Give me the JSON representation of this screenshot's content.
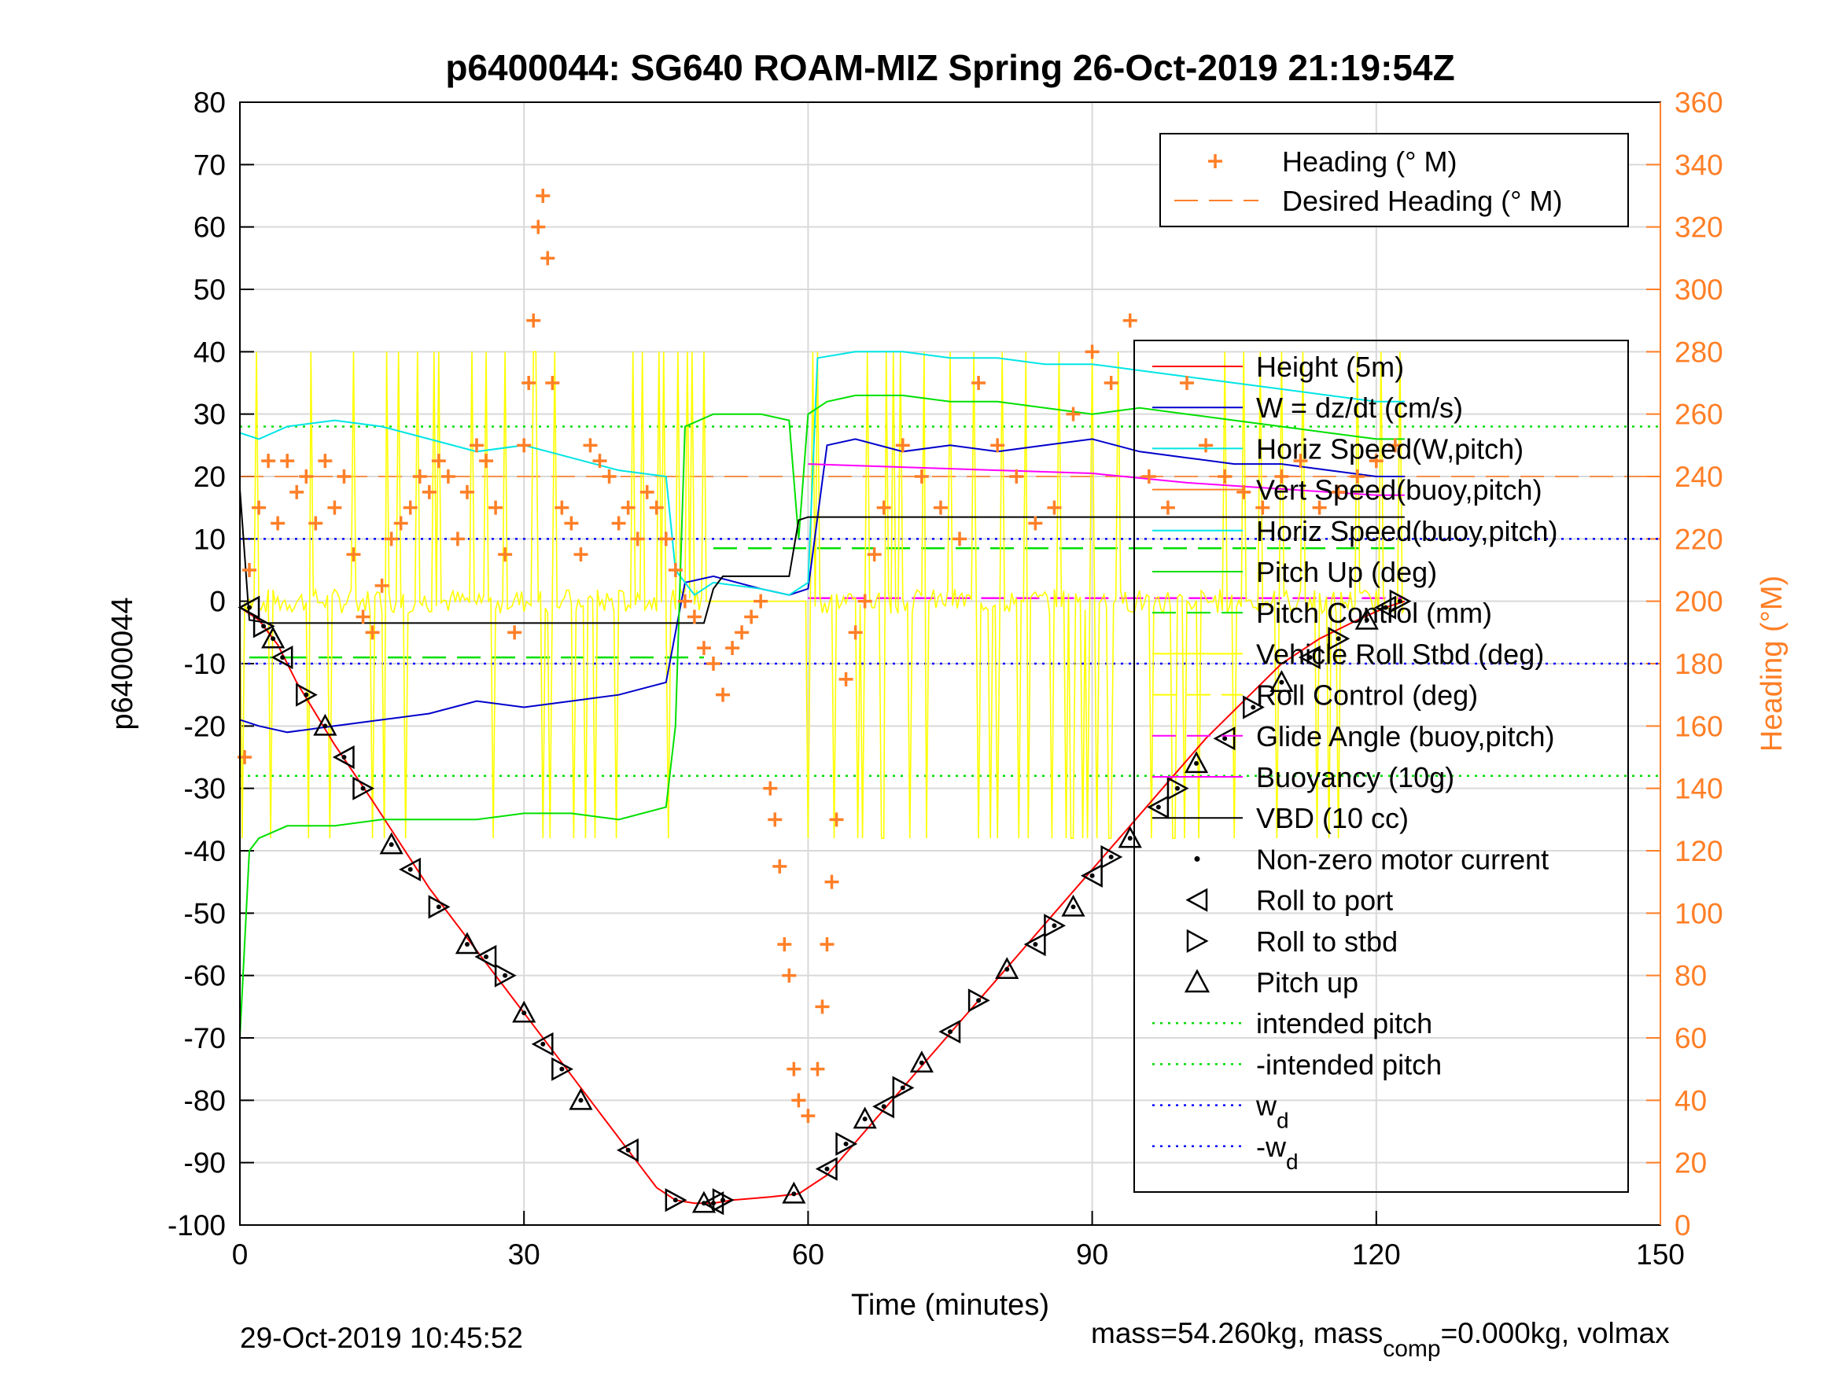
{
  "chart_data": {
    "type": "line",
    "title": "p6400044: SG640 ROAM-MIZ Spring 26-Oct-2019 21:19:54Z",
    "xlabel": "Time (minutes)",
    "ylabel": "p6400044",
    "y2label": "Heading (°M)",
    "xlim": [
      0,
      150
    ],
    "ylim": [
      -100,
      80
    ],
    "y2lim": [
      0,
      360
    ],
    "xticks": [
      0,
      30,
      60,
      90,
      120,
      150
    ],
    "yticks": [
      80,
      70,
      60,
      50,
      40,
      30,
      20,
      10,
      0,
      -10,
      -20,
      -30,
      -40,
      -50,
      -60,
      -70,
      -80,
      -90,
      -100
    ],
    "y2ticks": [
      360,
      340,
      320,
      300,
      280,
      260,
      240,
      220,
      200,
      180,
      160,
      140,
      120,
      100,
      80,
      60,
      40,
      20,
      0
    ],
    "grid": true,
    "colors": {
      "heading": "#ff7f27",
      "height": "#ff0000",
      "w": "#0000cc",
      "horiz_speed_w": "#00e5e5",
      "pitch": "#00e000",
      "roll": "#ffff00",
      "glide": "#ff00ff",
      "vbd": "#000000",
      "intended": "#00dd00",
      "wd": "#0000ff"
    },
    "legend_top": [
      {
        "label": "Heading (° M)",
        "style": "plus"
      },
      {
        "label": "Desired Heading (° M)",
        "style": "dash"
      }
    ],
    "legend_main": [
      {
        "label": "Height (5m)",
        "style": "solid",
        "color": "#ff0000"
      },
      {
        "label": "W = dz/dt (cm/s)",
        "style": "solid",
        "color": "#0000cc"
      },
      {
        "label": "Horiz Speed(W,pitch)",
        "style": "solid",
        "color": "#00e5e5"
      },
      {
        "label": "Vert Speed(buoy,pitch)",
        "style": "solid",
        "color": "#ff7f27"
      },
      {
        "label": "Horiz Speed(buoy,pitch)",
        "style": "solid",
        "color": "#00e5e5"
      },
      {
        "label": "Pitch Up (deg)",
        "style": "solid",
        "color": "#00e000"
      },
      {
        "label": "Pitch Control (mm)",
        "style": "dash",
        "color": "#00e000"
      },
      {
        "label": "Vehicle Roll Stbd (deg)",
        "style": "solid",
        "color": "#ffff00"
      },
      {
        "label": "Roll Control (deg)",
        "style": "dash",
        "color": "#ffff00"
      },
      {
        "label": "Glide Angle (buoy,pitch)",
        "style": "dash",
        "color": "#ff00ff"
      },
      {
        "label": "Buoyancy (10g)",
        "style": "solid",
        "color": "#ff00ff"
      },
      {
        "label": "VBD (10 cc)",
        "style": "solid",
        "color": "#000000"
      },
      {
        "label": "Non-zero motor current",
        "style": "dot",
        "color": "#000000"
      },
      {
        "label": "Roll to port",
        "style": "tri-left",
        "color": "#000000"
      },
      {
        "label": "Roll to stbd",
        "style": "tri-right",
        "color": "#000000"
      },
      {
        "label": "Pitch up",
        "style": "tri-up",
        "color": "#000000"
      },
      {
        "label": "intended pitch",
        "style": "dotted",
        "color": "#00dd00"
      },
      {
        "label": "-intended pitch",
        "style": "dotted",
        "color": "#00dd00"
      },
      {
        "label": "w",
        "sub": "d",
        "style": "dotted",
        "color": "#0000ff"
      },
      {
        "label": "-w",
        "sub": "d",
        "style": "dotted",
        "color": "#0000ff"
      }
    ],
    "desired_heading": 240,
    "intended_pitch": 28,
    "w_d": 10,
    "series": [
      {
        "name": "Height (5m)",
        "x": [
          0,
          2,
          4,
          6,
          10,
          14,
          20,
          26,
          30,
          34,
          38,
          42,
          44,
          46,
          48,
          50,
          52,
          56,
          59,
          62,
          66,
          70,
          74,
          78,
          82,
          86,
          90,
          94,
          98,
          102,
          106,
          110,
          114,
          118,
          121,
          123
        ],
        "y": [
          -1,
          -3,
          -7,
          -13,
          -23,
          -32,
          -46,
          -58,
          -66,
          -74,
          -82,
          -90,
          -94,
          -96,
          -96.5,
          -96.5,
          -96,
          -95.5,
          -95,
          -92,
          -85,
          -78,
          -71,
          -64,
          -57,
          -50,
          -43,
          -36,
          -29,
          -22,
          -16,
          -10,
          -6,
          -3,
          -1,
          0
        ]
      },
      {
        "name": "W = dz/dt (cm/s)",
        "x": [
          0,
          2,
          5,
          10,
          15,
          20,
          25,
          30,
          35,
          40,
          45,
          46,
          47,
          50,
          55,
          58,
          60,
          62,
          65,
          70,
          75,
          80,
          85,
          90,
          95,
          100,
          105,
          110,
          115,
          120,
          123
        ],
        "y": [
          -19,
          -20,
          -21,
          -20,
          -19,
          -18,
          -16,
          -17,
          -16,
          -15,
          -13,
          -5,
          3,
          4,
          2,
          1,
          2,
          25,
          26,
          24,
          25,
          24,
          25,
          26,
          24,
          23,
          22,
          22,
          21,
          20,
          20
        ]
      },
      {
        "name": "Horiz Speed(W,pitch)",
        "x": [
          0,
          2,
          5,
          10,
          15,
          20,
          25,
          30,
          35,
          40,
          45,
          46,
          48,
          50,
          55,
          58,
          60,
          61,
          65,
          70,
          75,
          80,
          85,
          90,
          95,
          100,
          105,
          110,
          115,
          120,
          123
        ],
        "y": [
          27,
          26,
          28,
          29,
          28,
          26,
          24,
          25,
          23,
          21,
          20,
          5,
          1,
          3,
          2,
          1,
          3,
          39,
          40,
          40,
          39,
          39,
          38,
          38,
          37,
          36,
          35,
          34,
          33,
          32,
          32
        ]
      },
      {
        "name": "Pitch Up (deg)",
        "x": [
          0,
          1,
          2,
          5,
          10,
          15,
          20,
          25,
          30,
          35,
          40,
          45,
          46,
          47,
          50,
          55,
          58,
          59,
          60,
          62,
          65,
          70,
          75,
          80,
          85,
          90,
          95,
          100,
          105,
          110,
          115,
          120,
          123
        ],
        "y": [
          -70,
          -40,
          -38,
          -36,
          -36,
          -35,
          -35,
          -35,
          -34,
          -34,
          -35,
          -33,
          -20,
          28,
          30,
          30,
          29,
          10,
          30,
          32,
          33,
          33,
          32,
          32,
          31,
          30,
          31,
          30,
          29,
          28,
          27,
          26,
          26
        ]
      },
      {
        "name": "Buoyancy (10g)",
        "x": [
          60,
          70,
          80,
          90,
          100,
          110,
          120,
          123
        ],
        "y": [
          22,
          21.5,
          21,
          20.5,
          19,
          18,
          17,
          17
        ]
      },
      {
        "name": "VBD (10 cc)",
        "x": [
          0,
          1,
          3,
          10,
          20,
          30,
          40,
          49,
          50,
          51,
          58,
          59,
          60,
          70,
          80,
          90,
          100,
          110,
          120,
          123
        ],
        "y": [
          18,
          -3,
          -3.5,
          -3.5,
          -3.5,
          -3.5,
          -3.5,
          -3.5,
          2,
          4,
          4,
          13,
          13.5,
          13.5,
          13.5,
          13.5,
          13.5,
          13.5,
          13.5,
          13.5
        ]
      },
      {
        "name": "Heading (° M)",
        "axis": "right",
        "x": [
          0.5,
          1,
          2,
          3,
          4,
          5,
          6,
          7,
          8,
          9,
          10,
          11,
          12,
          13,
          14,
          15,
          16,
          17,
          18,
          19,
          20,
          21,
          22,
          23,
          24,
          25,
          26,
          27,
          28,
          29,
          30,
          30.5,
          31,
          31.5,
          32,
          32.5,
          33,
          34,
          35,
          36,
          37,
          38,
          39,
          40,
          41,
          42,
          43,
          44,
          45,
          46,
          47,
          48,
          49,
          50,
          51,
          52,
          53,
          54,
          55,
          56,
          56.5,
          57,
          57.5,
          58,
          58.5,
          59,
          60,
          61,
          61.5,
          62,
          62.5,
          63,
          64,
          65,
          66,
          67,
          68,
          70,
          72,
          74,
          76,
          78,
          80,
          82,
          84,
          86,
          88,
          90,
          92,
          94,
          96,
          98,
          100,
          102,
          104,
          106,
          108,
          110,
          112,
          114,
          116,
          118,
          120,
          122
        ],
        "y": [
          150,
          210,
          230,
          245,
          225,
          245,
          235,
          240,
          225,
          245,
          230,
          240,
          215,
          195,
          190,
          205,
          220,
          225,
          230,
          240,
          235,
          245,
          240,
          220,
          235,
          250,
          245,
          230,
          215,
          190,
          250,
          270,
          290,
          320,
          330,
          310,
          270,
          230,
          225,
          215,
          250,
          245,
          240,
          225,
          230,
          220,
          235,
          230,
          220,
          210,
          200,
          195,
          185,
          180,
          170,
          185,
          190,
          195,
          200,
          140,
          130,
          115,
          90,
          80,
          50,
          40,
          35,
          50,
          70,
          90,
          110,
          130,
          175,
          190,
          200,
          215,
          230,
          250,
          240,
          230,
          220,
          270,
          250,
          240,
          225,
          230,
          260,
          280,
          270,
          290,
          240,
          230,
          270,
          250,
          240,
          235,
          230,
          240,
          245,
          230,
          235,
          240,
          245,
          250
        ]
      }
    ],
    "motor_events": {
      "x": [
        1,
        2.5,
        3.5,
        4.5,
        7,
        9,
        11,
        13,
        16,
        18,
        21,
        24,
        26,
        28,
        30,
        32,
        34,
        36,
        41,
        46,
        49,
        50,
        51,
        58.5,
        62,
        64,
        66,
        68,
        70,
        72,
        75,
        78,
        81,
        84,
        86,
        88,
        90,
        92,
        94,
        97,
        99,
        101,
        104,
        107,
        110,
        113,
        116,
        119,
        121,
        122.5
      ],
      "y": [
        -1,
        -4,
        -6,
        -9,
        -15,
        -20,
        -25,
        -30,
        -39,
        -43,
        -49,
        -55,
        -57,
        -60,
        -66,
        -71,
        -75,
        -80,
        -88,
        -96,
        -96.5,
        -96.5,
        -96,
        -95,
        -91,
        -87,
        -83,
        -81,
        -78,
        -74,
        -69,
        -64,
        -59,
        -55,
        -52,
        -49,
        -44,
        -41,
        -38,
        -33,
        -30,
        -26,
        -22,
        -17,
        -13,
        -9,
        -6,
        -3,
        -1,
        0
      ]
    },
    "footer_left": "29-Oct-2019 10:45:52",
    "footer_right": "mass=54.260kg, mass",
    "footer_right_sub": "comp",
    "footer_right_tail": "=0.000kg, volmax"
  }
}
